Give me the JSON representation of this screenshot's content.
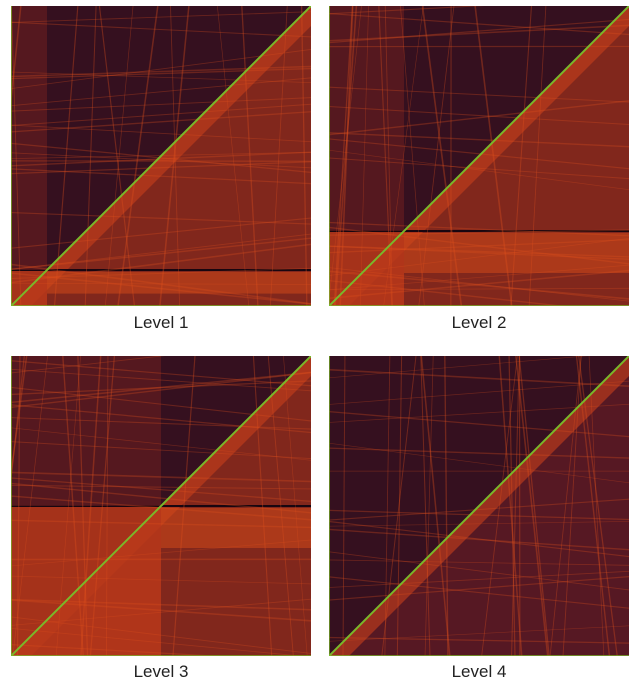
{
  "panels": [
    {
      "label": "Level 1"
    },
    {
      "label": "Level 2"
    },
    {
      "label": "Level 3"
    },
    {
      "label": "Level 4"
    }
  ]
}
